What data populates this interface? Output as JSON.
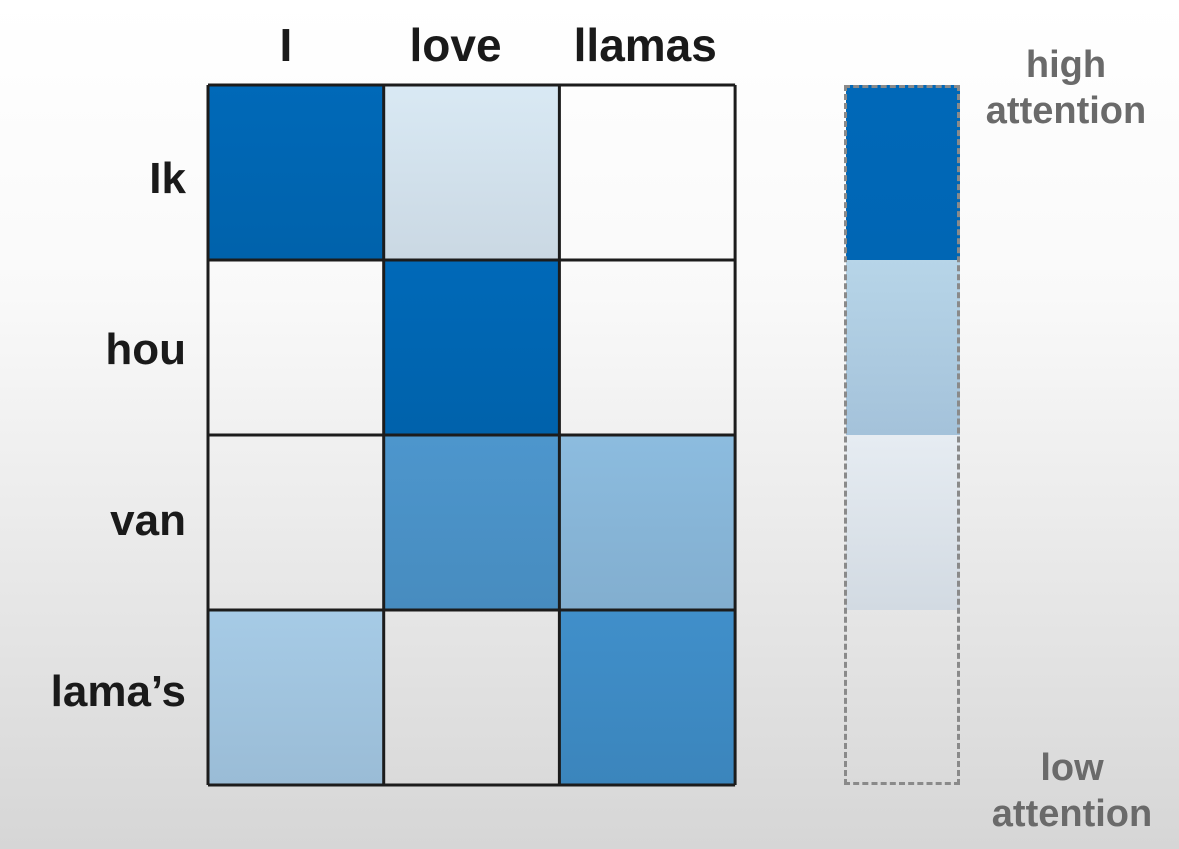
{
  "chart_data": {
    "type": "heatmap",
    "columns": [
      "I",
      "love",
      "llamas"
    ],
    "rows": [
      "Ik",
      "hou",
      "van",
      "lama’s"
    ],
    "values": [
      [
        1.0,
        0.15,
        0.0
      ],
      [
        0.0,
        1.0,
        0.0
      ],
      [
        0.0,
        0.7,
        0.45
      ],
      [
        0.35,
        0.0,
        0.75
      ]
    ],
    "colors": {
      "high": "#0069b8",
      "low": "#ffffff",
      "grid": "#1c1c1c"
    },
    "legend": {
      "high_label": "high\nattention",
      "low_label": "low\nattention",
      "segments": [
        {
          "level": "high",
          "colors": [
            "#0068b8",
            "#0066b4"
          ]
        },
        {
          "level": "medium",
          "colors": [
            "#b7d5e8",
            "#a4c2da"
          ]
        },
        {
          "level": "low",
          "colors": [
            "#e6ecf2",
            "#d2dae2"
          ]
        },
        {
          "level": "none",
          "colors": [
            "transparent",
            "transparent"
          ]
        }
      ]
    }
  }
}
